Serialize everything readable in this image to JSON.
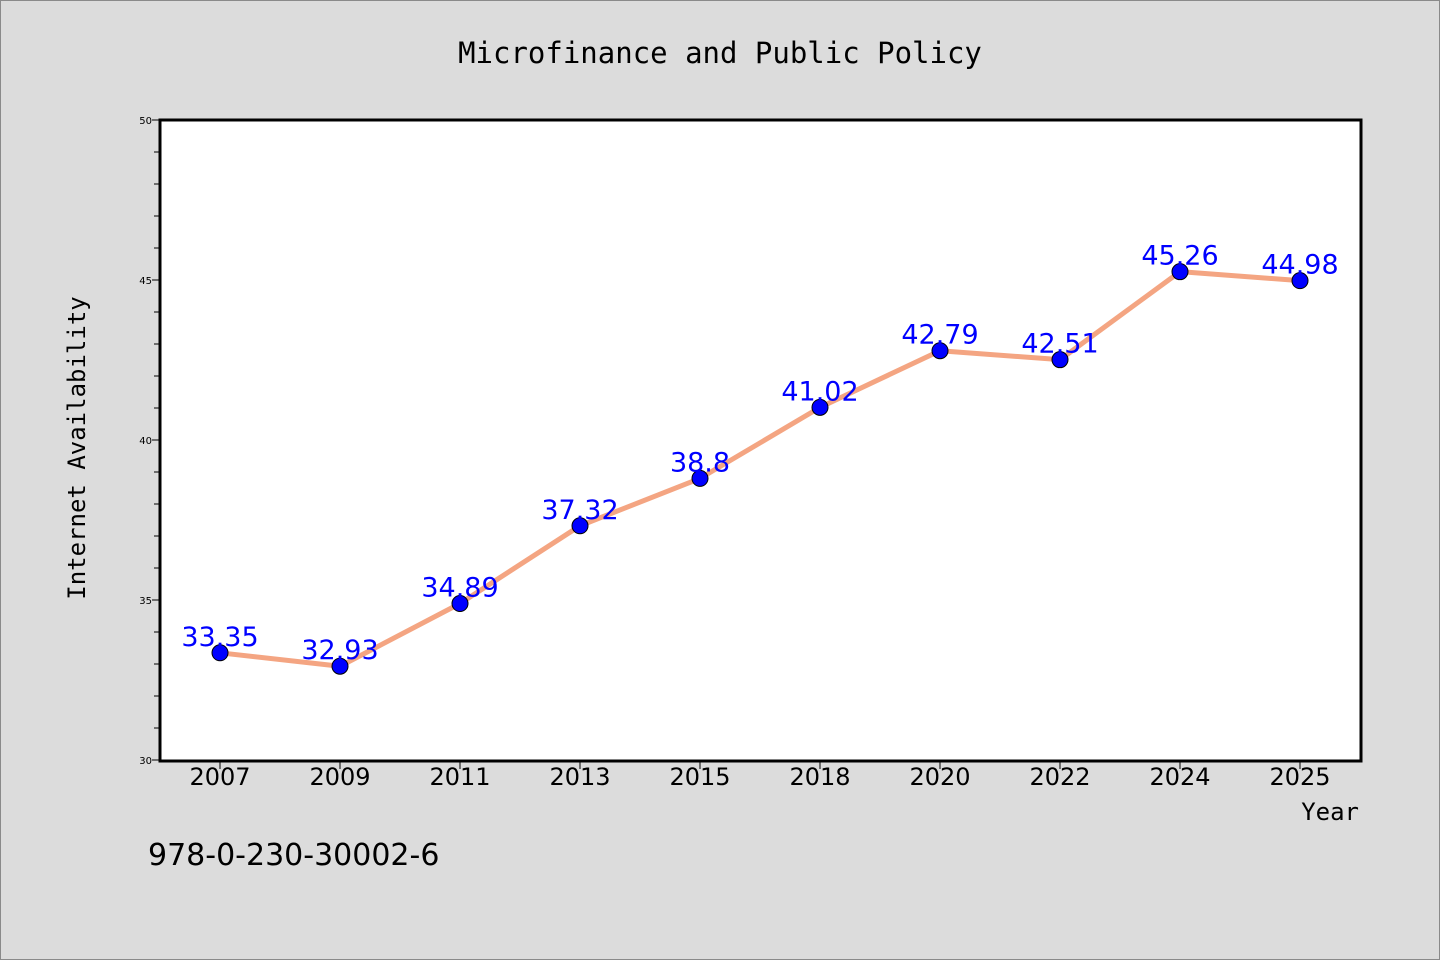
{
  "chart_data": {
    "type": "line",
    "title": "Microfinance and Public Policy",
    "xlabel": "Year",
    "ylabel": "Internet Availability",
    "categories": [
      "2007",
      "2009",
      "2011",
      "2013",
      "2015",
      "2018",
      "2020",
      "2022",
      "2024",
      "2025"
    ],
    "series": [
      {
        "values": [
          33.35,
          32.93,
          34.89,
          37.32,
          38.8,
          41.02,
          42.79,
          42.51,
          45.26,
          44.98
        ],
        "labels": [
          "33.35",
          "32.93",
          "34.89",
          "37.32",
          "38.8",
          "41.02",
          "42.79",
          "42.51",
          "45.26",
          "44.98"
        ]
      }
    ],
    "ylim": [
      30,
      50
    ],
    "yticks": [
      "30",
      "35",
      "40",
      "45",
      "50"
    ],
    "grid": false,
    "colors": {
      "line": "#f4a582",
      "marker": "#0000ff",
      "label": "#0000ff",
      "background": "#dcdcdc",
      "plot_bg": "#ffffff"
    }
  },
  "footer_text": "978-0-230-30002-6"
}
